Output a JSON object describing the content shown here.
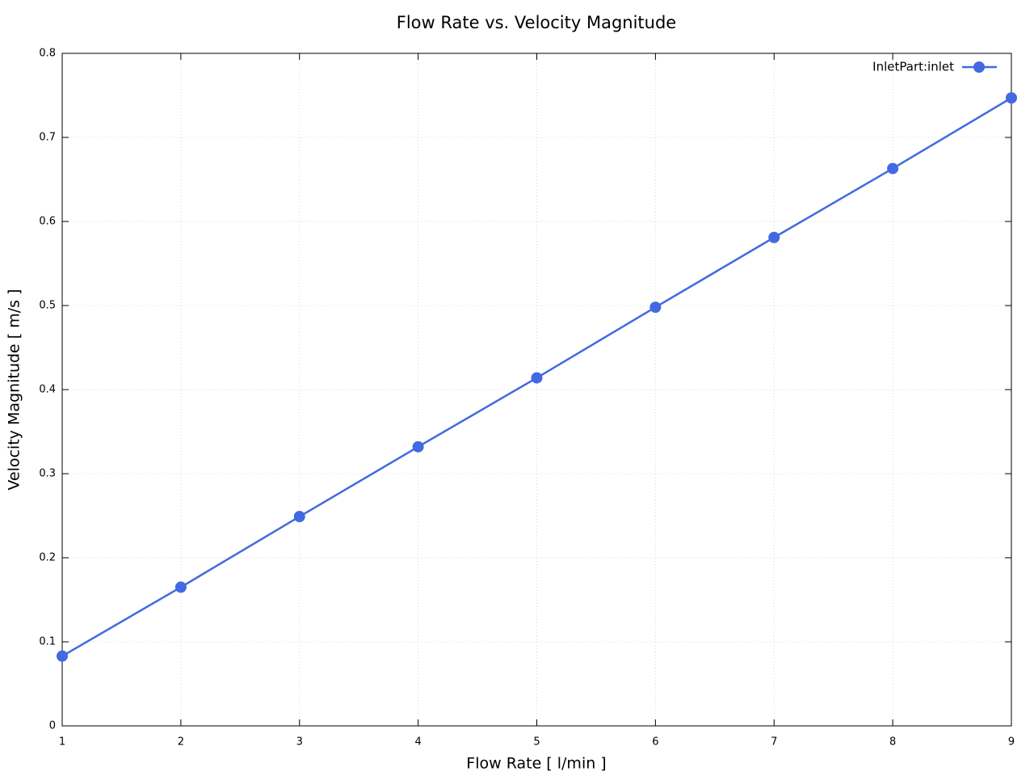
{
  "chart_data": {
    "type": "line",
    "title": "Flow Rate vs. Velocity Magnitude",
    "x_label": "Flow Rate [ l/min ]",
    "y_label": "Velocity Magnitude [ m/s ]",
    "x": [
      1,
      2,
      3,
      4,
      5,
      6,
      7,
      8,
      9
    ],
    "series": [
      {
        "name": "InletPart:inlet",
        "color": "#4169e1",
        "values": [
          0.083,
          0.165,
          0.249,
          0.332,
          0.414,
          0.498,
          0.581,
          0.663,
          0.747
        ]
      }
    ],
    "xlim": [
      1,
      9
    ],
    "xticks": [
      1,
      2,
      3,
      4,
      5,
      6,
      7,
      8,
      9
    ],
    "ylim": [
      0,
      0.8
    ],
    "yticks": [
      0,
      0.1,
      0.2,
      0.3,
      0.4,
      0.5,
      0.6,
      0.7,
      0.8
    ],
    "grid": true,
    "legend": "top-right"
  }
}
